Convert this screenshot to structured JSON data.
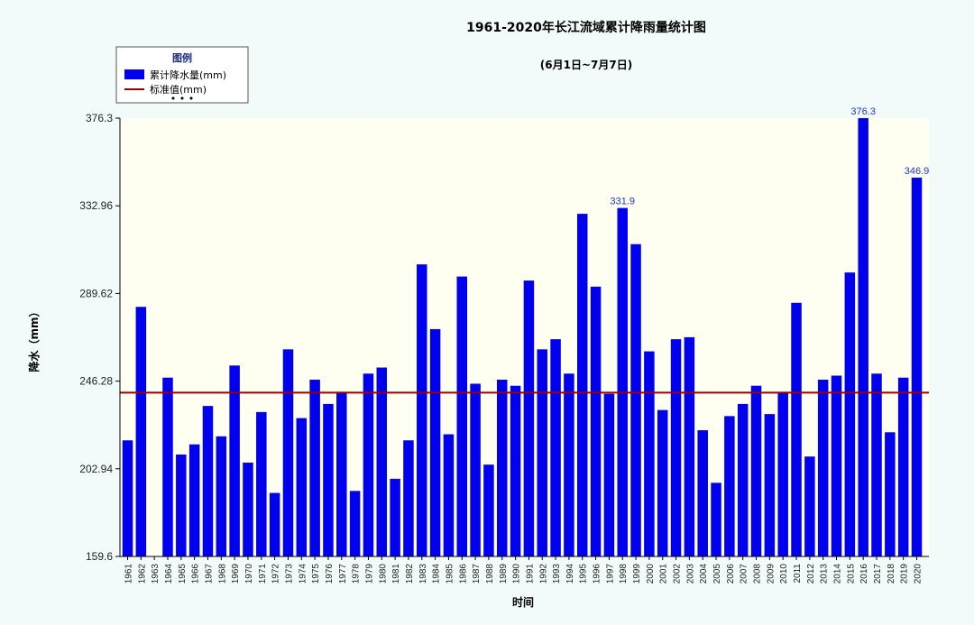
{
  "chart_data": {
    "type": "bar",
    "title": "1961-2020年长江流域累计降雨量统计图",
    "subtitle": "(6月1日~7月7日)",
    "xlabel": "时间",
    "ylabel": "降水（mm）",
    "ylim": [
      159.6,
      376.3
    ],
    "yticks": [
      "376.3",
      "332.96",
      "289.62",
      "246.28",
      "202.94",
      "159.6"
    ],
    "grid": false,
    "legend_position": "top-left",
    "legend": {
      "title": "图例",
      "bar_label": "累计降水量(mm)",
      "line_label": "标准值(mm)",
      "more": "• • •"
    },
    "categories": [
      "1961",
      "1962",
      "1963",
      "1964",
      "1965",
      "1966",
      "1967",
      "1968",
      "1969",
      "1970",
      "1971",
      "1972",
      "1973",
      "1974",
      "1975",
      "1976",
      "1977",
      "1978",
      "1979",
      "1980",
      "1981",
      "1982",
      "1983",
      "1984",
      "1985",
      "1986",
      "1987",
      "1988",
      "1989",
      "1990",
      "1991",
      "1992",
      "1993",
      "1994",
      "1995",
      "1996",
      "1997",
      "1998",
      "1999",
      "2000",
      "2001",
      "2002",
      "2003",
      "2004",
      "2005",
      "2006",
      "2007",
      "2008",
      "2009",
      "2010",
      "2011",
      "2012",
      "2013",
      "2014",
      "2015",
      "2016",
      "2017",
      "2018",
      "2019",
      "2020"
    ],
    "series": [
      {
        "name": "累计降水量(mm)",
        "type": "bar",
        "color": "#0000ee",
        "values": [
          217,
          283,
          null,
          248,
          210,
          215,
          234,
          219,
          254,
          206,
          231,
          191,
          262,
          228,
          247,
          235,
          241,
          192,
          250,
          253,
          198,
          217,
          304,
          272,
          220,
          298,
          245,
          205,
          247,
          244,
          296,
          262,
          267,
          250,
          329,
          293,
          240,
          331.9,
          314,
          261,
          232,
          267,
          268,
          222,
          196,
          229,
          235,
          244,
          230,
          241,
          285,
          209,
          247,
          249,
          300,
          376.3,
          250,
          221,
          248,
          346.9
        ],
        "data_labels": {
          "1998": "331.9",
          "2016": "376.3",
          "2020": "346.9"
        }
      },
      {
        "name": "标准值(mm)",
        "type": "line",
        "color": "#990000",
        "value": 240.6
      }
    ]
  }
}
